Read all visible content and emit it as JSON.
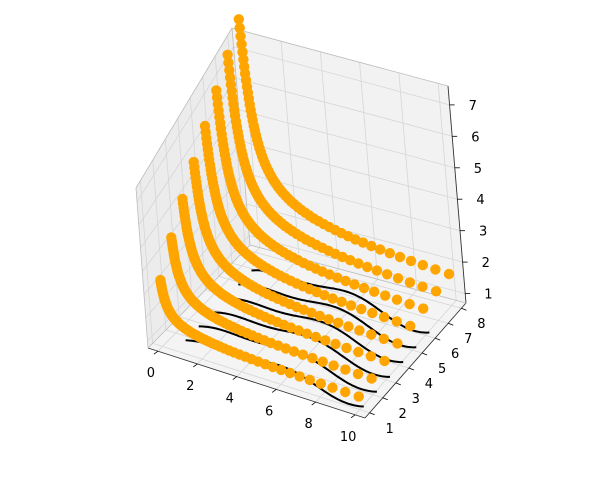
{
  "chart_data": {
    "type": "line3d",
    "title": "",
    "xlabel": "",
    "ylabel": "",
    "zlabel": "",
    "xlim": [
      -0.5,
      10.5
    ],
    "ylim": [
      0.65,
      8.35
    ],
    "zlim": [
      0.7,
      7.6
    ],
    "grid": true,
    "legend": "none",
    "xticks": [
      "0",
      "2",
      "4",
      "6",
      "8",
      "10"
    ],
    "yticks": [
      "1",
      "2",
      "3",
      "4",
      "5",
      "6",
      "7",
      "8"
    ],
    "zticks": [
      "1",
      "2",
      "3",
      "4",
      "5",
      "6",
      "7"
    ],
    "marker_series": {
      "color": "#ffa500",
      "x_start": 0.15,
      "x_end": 10,
      "points_per_series": 60,
      "z_formula": "1 + 0.9*sqrt(k)/x^0.55",
      "y_levels": [
        1,
        2,
        3,
        4,
        5,
        6,
        7,
        8
      ]
    },
    "line_series": {
      "color": "#000000",
      "x_start": 1,
      "x_end": 10,
      "z_formula": "1 + 0.3*sin(0.6*(x-1.5)) + 0.15*sin(1.2*x)",
      "y_levels": [
        1.3,
        2.3,
        3.3,
        4.3,
        5.3,
        6.3
      ]
    }
  }
}
